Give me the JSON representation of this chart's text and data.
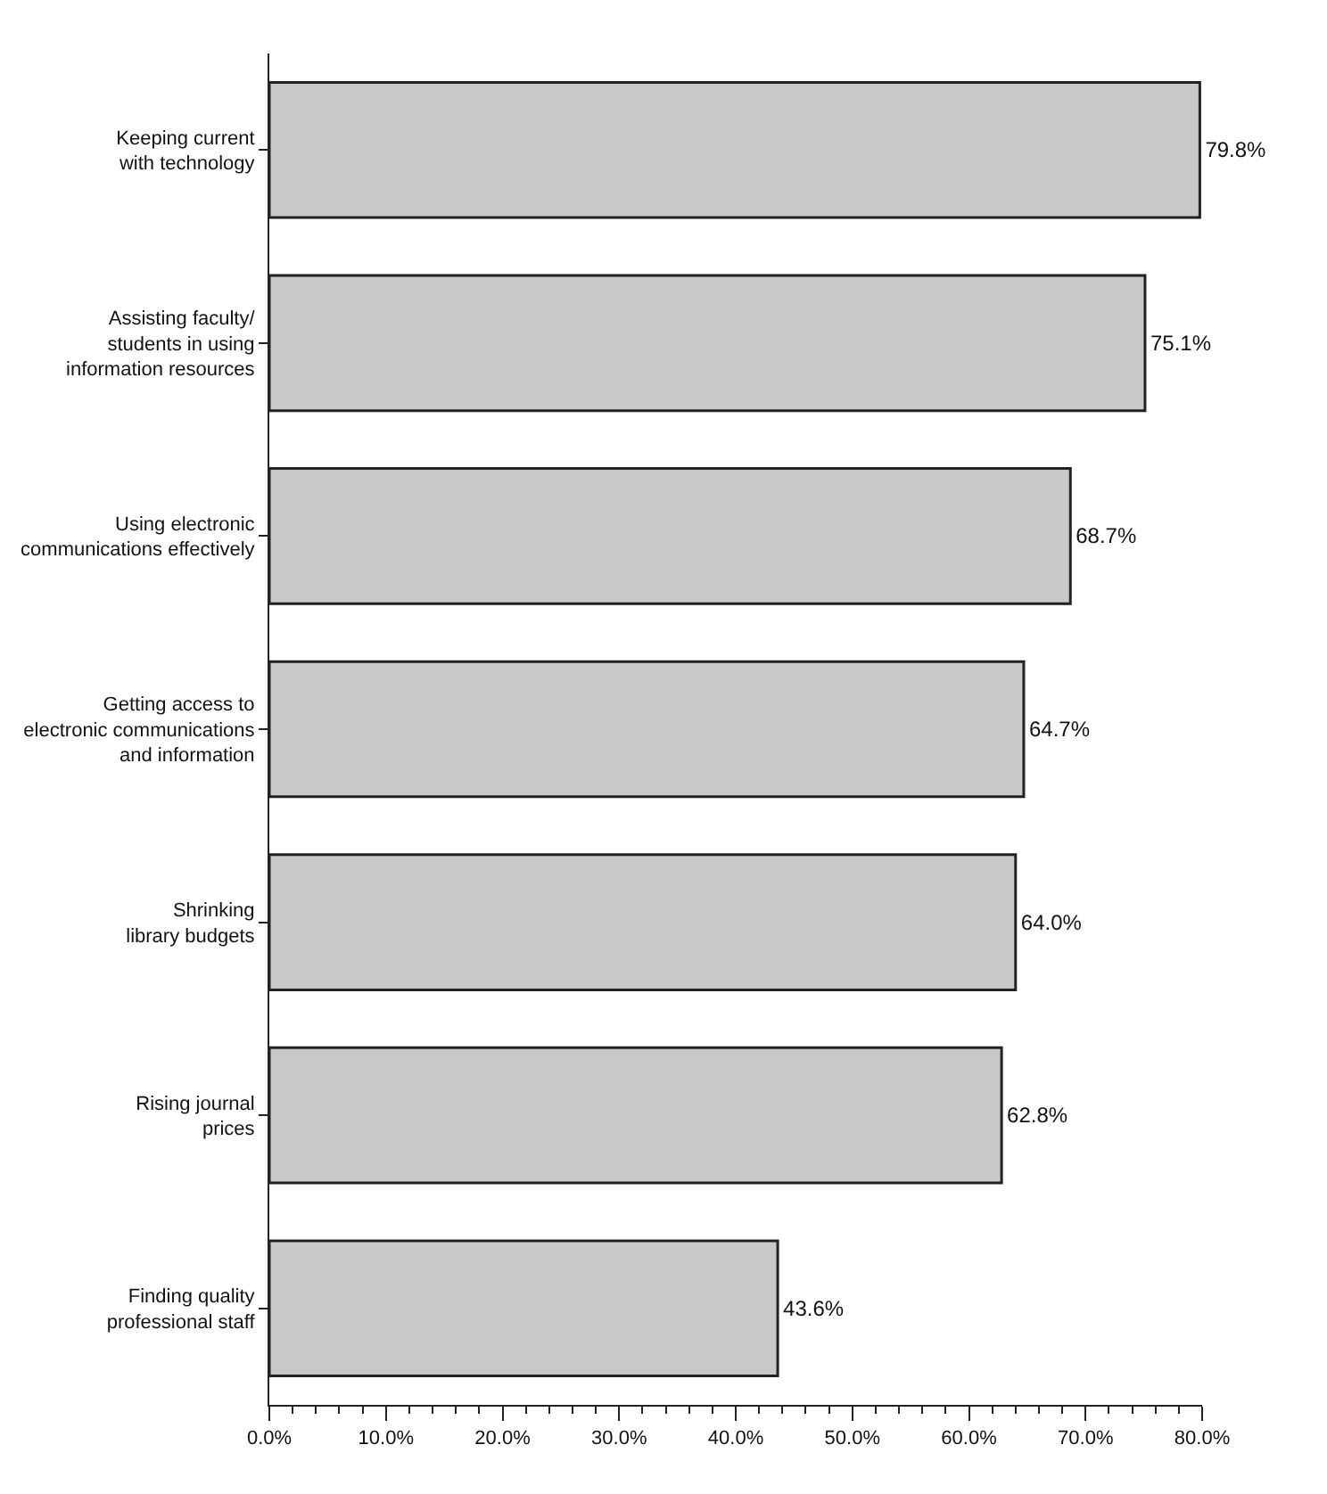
{
  "chart_data": {
    "type": "bar",
    "orientation": "horizontal",
    "categories": [
      "Keeping current\nwith technology",
      "Assisting faculty/\nstudents in using\ninformation resources",
      "Using electronic\ncommunications effectively",
      "Getting access to\nelectronic communications\nand information",
      "Shrinking\nlibrary budgets",
      "Rising journal\nprices",
      "Finding quality\nprofessional staff"
    ],
    "values": [
      79.8,
      75.1,
      68.7,
      64.7,
      64.0,
      62.8,
      43.6
    ],
    "value_labels": [
      "79.8%",
      "75.1%",
      "68.7%",
      "64.7%",
      "64.0%",
      "62.8%",
      "43.6%"
    ],
    "color": "#c8c8c8",
    "xlim": [
      0,
      80
    ],
    "xticks": [
      {
        "value": 0,
        "label": "0.0%"
      },
      {
        "value": 10,
        "label": "10.0%"
      },
      {
        "value": 20,
        "label": "20.0%"
      },
      {
        "value": 30,
        "label": "30.0%"
      },
      {
        "value": 40,
        "label": "40.0%"
      },
      {
        "value": 50,
        "label": "50.0%"
      },
      {
        "value": 60,
        "label": "60.0%"
      },
      {
        "value": 70,
        "label": "70.0%"
      },
      {
        "value": 80,
        "label": "80.0%"
      }
    ],
    "legend": false
  }
}
